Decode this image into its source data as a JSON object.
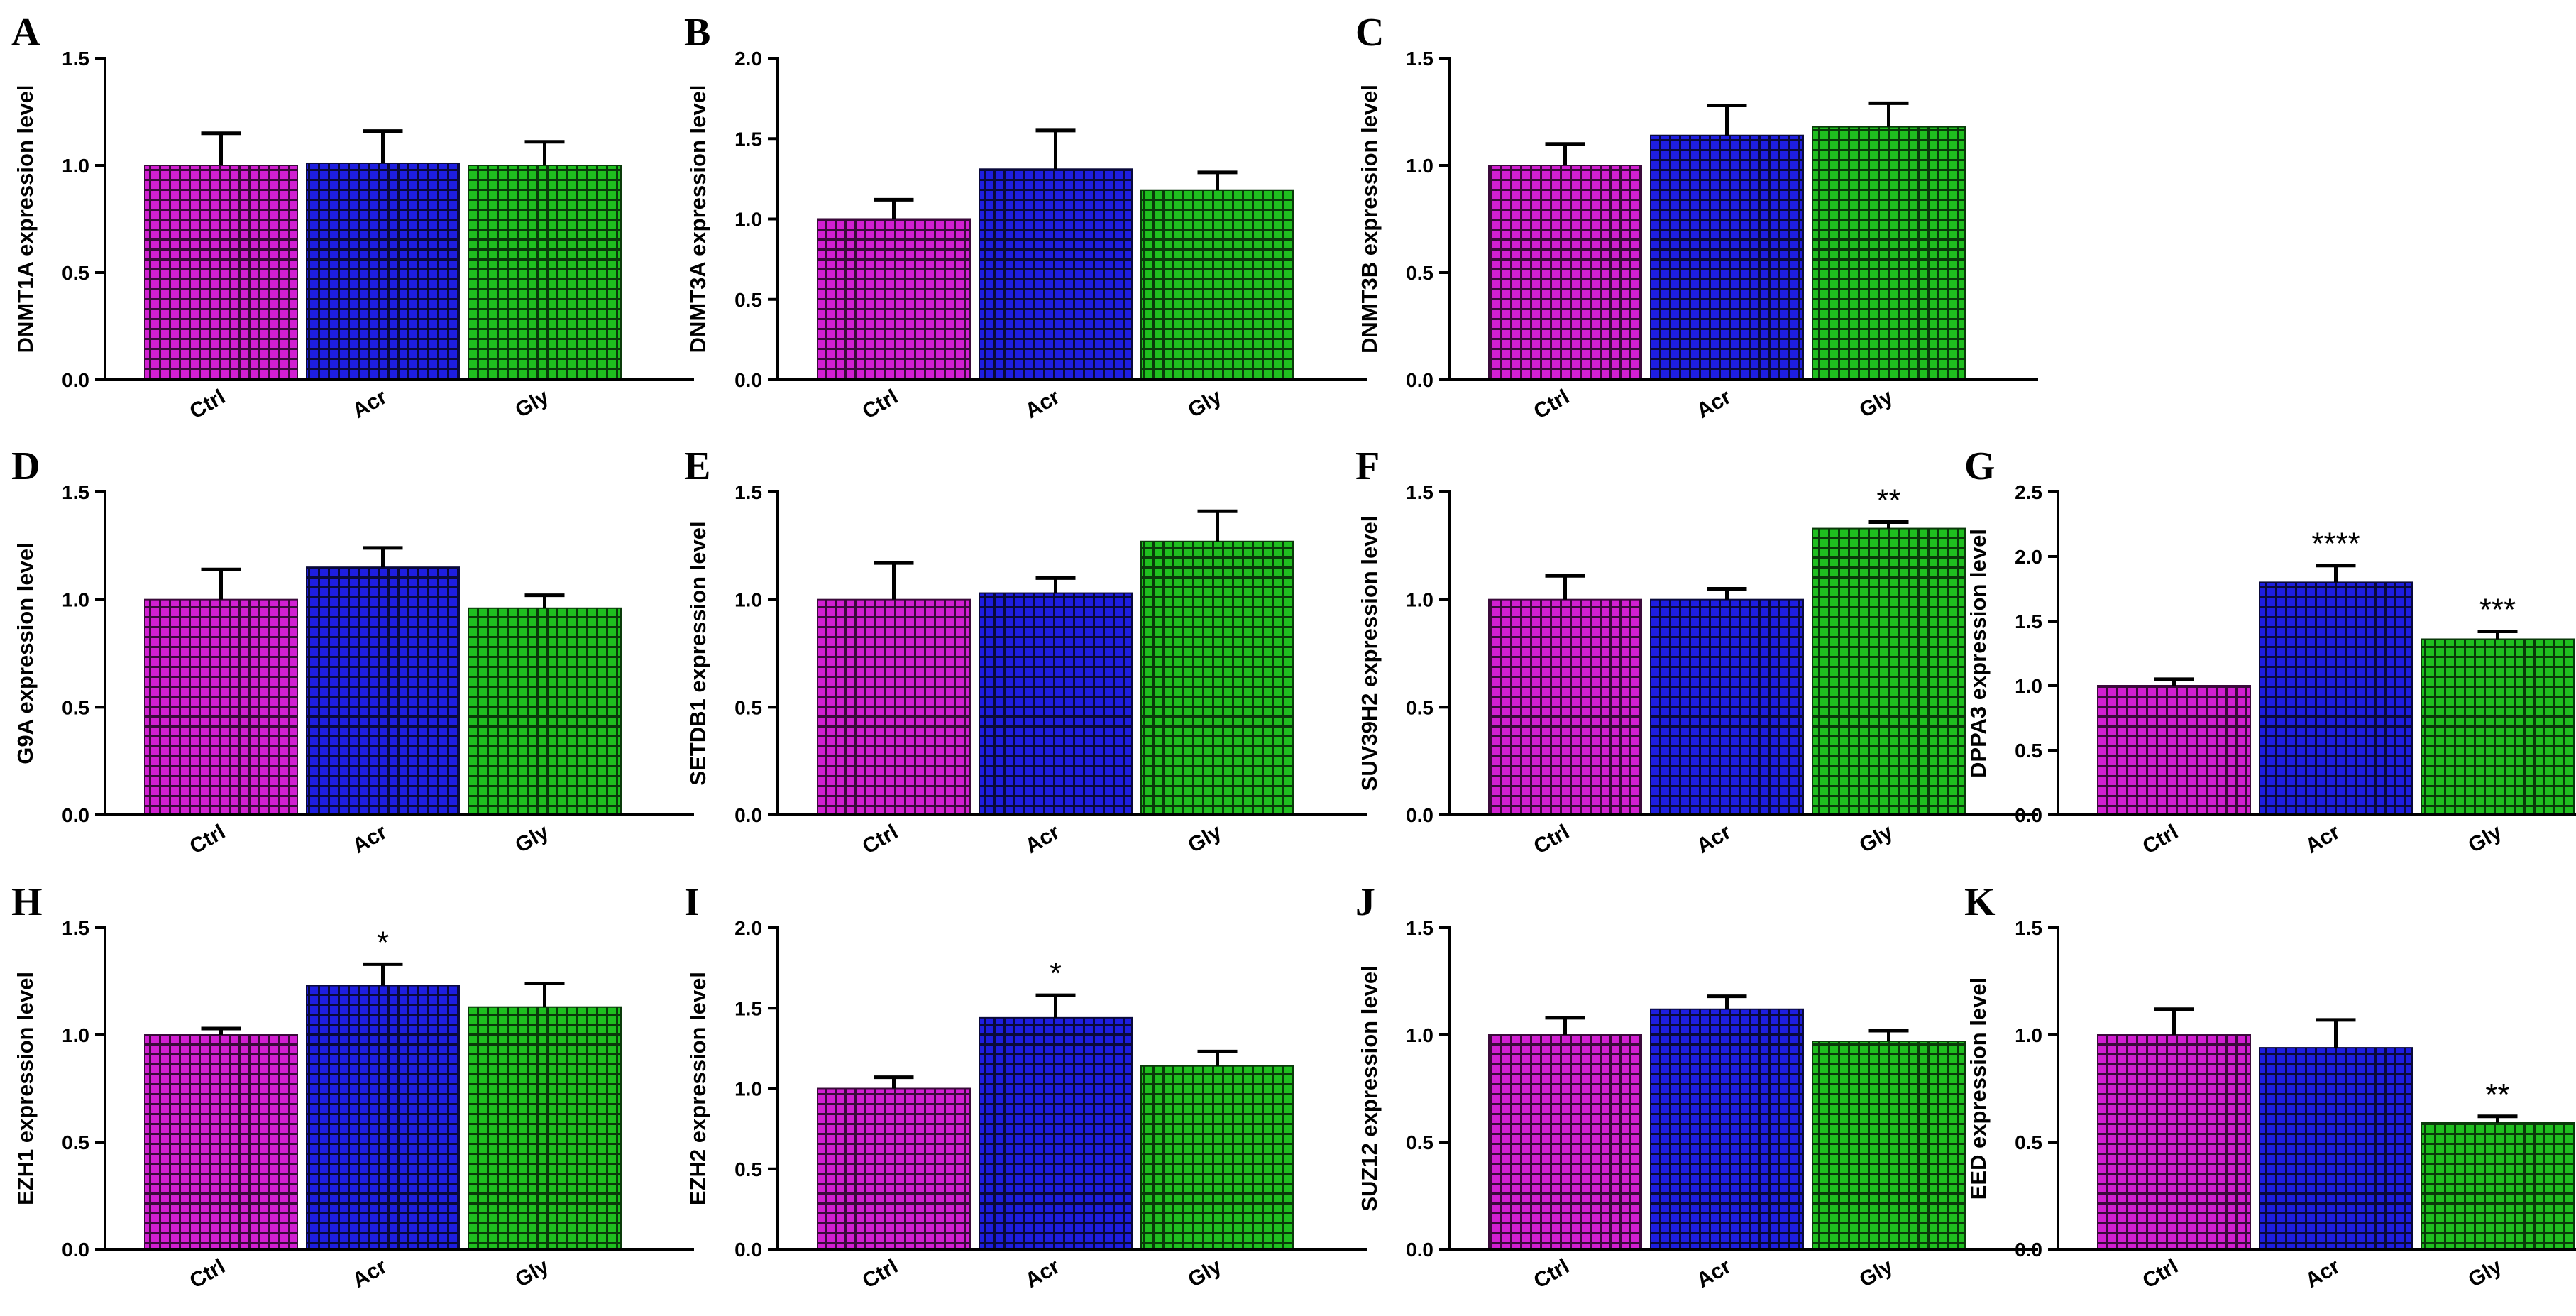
{
  "colors": {
    "Ctrl": {
      "fill": "#d11fd1",
      "grid": "#3a0a3a"
    },
    "Acr": {
      "fill": "#1e1ee0",
      "grid": "#0a0a3a"
    },
    "Gly": {
      "fill": "#1fbf1f",
      "grid": "#0a3a0a"
    }
  },
  "chart_data": [
    {
      "panel": "A",
      "type": "bar",
      "ylabel": "DNMT1A expression level",
      "categories": [
        "Ctrl",
        "Acr",
        "Gly"
      ],
      "values": [
        1.0,
        1.01,
        1.0
      ],
      "errors": [
        0.15,
        0.15,
        0.11
      ],
      "ylim": [
        0,
        1.5
      ],
      "yticks": [
        0.0,
        0.5,
        1.0,
        1.5
      ],
      "yticklabels": [
        "0.0",
        "0.5",
        "1.0",
        "1.5"
      ],
      "significance": [
        "",
        "",
        ""
      ]
    },
    {
      "panel": "B",
      "type": "bar",
      "ylabel": "DNMT3A expression level",
      "categories": [
        "Ctrl",
        "Acr",
        "Gly"
      ],
      "values": [
        1.0,
        1.31,
        1.18
      ],
      "errors": [
        0.12,
        0.24,
        0.11
      ],
      "ylim": [
        0,
        2.0
      ],
      "yticks": [
        0.0,
        0.5,
        1.0,
        1.5,
        2.0
      ],
      "yticklabels": [
        "0.0",
        "0.5",
        "1.0",
        "1.5",
        "2.0"
      ],
      "significance": [
        "",
        "",
        ""
      ]
    },
    {
      "panel": "C",
      "type": "bar",
      "ylabel": "DNMT3B expression level",
      "categories": [
        "Ctrl",
        "Acr",
        "Gly"
      ],
      "values": [
        1.0,
        1.14,
        1.18
      ],
      "errors": [
        0.1,
        0.14,
        0.11
      ],
      "ylim": [
        0,
        1.5
      ],
      "yticks": [
        0.0,
        0.5,
        1.0,
        1.5
      ],
      "yticklabels": [
        "0.0",
        "0.5",
        "1.0",
        "1.5"
      ],
      "significance": [
        "",
        "",
        ""
      ]
    },
    {
      "panel": "D",
      "type": "bar",
      "ylabel": "G9A expression level",
      "categories": [
        "Ctrl",
        "Acr",
        "Gly"
      ],
      "values": [
        1.0,
        1.15,
        0.96
      ],
      "errors": [
        0.14,
        0.09,
        0.06
      ],
      "ylim": [
        0,
        1.5
      ],
      "yticks": [
        0.0,
        0.5,
        1.0,
        1.5
      ],
      "yticklabels": [
        "0.0",
        "0.5",
        "1.0",
        "1.5"
      ],
      "significance": [
        "",
        "",
        ""
      ]
    },
    {
      "panel": "E",
      "type": "bar",
      "ylabel": "SETDB1 expression level",
      "categories": [
        "Ctrl",
        "Acr",
        "Gly"
      ],
      "values": [
        1.0,
        1.03,
        1.27
      ],
      "errors": [
        0.17,
        0.07,
        0.14
      ],
      "ylim": [
        0,
        1.5
      ],
      "yticks": [
        0.0,
        0.5,
        1.0,
        1.5
      ],
      "yticklabels": [
        "0.0",
        "0.5",
        "1.0",
        "1.5"
      ],
      "significance": [
        "",
        "",
        ""
      ]
    },
    {
      "panel": "F",
      "type": "bar",
      "ylabel": "SUV39H2 expression level",
      "categories": [
        "Ctrl",
        "Acr",
        "Gly"
      ],
      "values": [
        1.0,
        1.0,
        1.33
      ],
      "errors": [
        0.11,
        0.05,
        0.03
      ],
      "ylim": [
        0,
        1.5
      ],
      "yticks": [
        0.0,
        0.5,
        1.0,
        1.5
      ],
      "yticklabels": [
        "0.0",
        "0.5",
        "1.0",
        "1.5"
      ],
      "significance": [
        "",
        "",
        "**"
      ]
    },
    {
      "panel": "G",
      "type": "bar",
      "ylabel": "DPPA3 expression level",
      "categories": [
        "Ctrl",
        "Acr",
        "Gly"
      ],
      "values": [
        1.0,
        1.8,
        1.36
      ],
      "errors": [
        0.05,
        0.13,
        0.06
      ],
      "ylim": [
        0,
        2.5
      ],
      "yticks": [
        0.0,
        0.5,
        1.0,
        1.5,
        2.0,
        2.5
      ],
      "yticklabels": [
        "0.0",
        "0.5",
        "1.0",
        "1.5",
        "2.0",
        "2.5"
      ],
      "significance": [
        "",
        "****",
        "***"
      ]
    },
    {
      "panel": "H",
      "type": "bar",
      "ylabel": "EZH1 expression level",
      "categories": [
        "Ctrl",
        "Acr",
        "Gly"
      ],
      "values": [
        1.0,
        1.23,
        1.13
      ],
      "errors": [
        0.03,
        0.1,
        0.11
      ],
      "ylim": [
        0,
        1.5
      ],
      "yticks": [
        0.0,
        0.5,
        1.0,
        1.5
      ],
      "yticklabels": [
        "0.0",
        "0.5",
        "1.0",
        "1.5"
      ],
      "significance": [
        "",
        "*",
        ""
      ]
    },
    {
      "panel": "I",
      "type": "bar",
      "ylabel": "EZH2 expression level",
      "categories": [
        "Ctrl",
        "Acr",
        "Gly"
      ],
      "values": [
        1.0,
        1.44,
        1.14
      ],
      "errors": [
        0.07,
        0.14,
        0.09
      ],
      "ylim": [
        0,
        2.0
      ],
      "yticks": [
        0.0,
        0.5,
        1.0,
        1.5,
        2.0
      ],
      "yticklabels": [
        "0.0",
        "0.5",
        "1.0",
        "1.5",
        "2.0"
      ],
      "significance": [
        "",
        "*",
        ""
      ]
    },
    {
      "panel": "J",
      "type": "bar",
      "ylabel": "SUZ12 expression level",
      "categories": [
        "Ctrl",
        "Acr",
        "Gly"
      ],
      "values": [
        1.0,
        1.12,
        0.97
      ],
      "errors": [
        0.08,
        0.06,
        0.05
      ],
      "ylim": [
        0,
        1.5
      ],
      "yticks": [
        0.0,
        0.5,
        1.0,
        1.5
      ],
      "yticklabels": [
        "0.0",
        "0.5",
        "1.0",
        "1.5"
      ],
      "significance": [
        "",
        "",
        ""
      ]
    },
    {
      "panel": "K",
      "type": "bar",
      "ylabel": "EED expression level",
      "categories": [
        "Ctrl",
        "Acr",
        "Gly"
      ],
      "values": [
        1.0,
        0.94,
        0.59
      ],
      "errors": [
        0.12,
        0.13,
        0.03
      ],
      "ylim": [
        0,
        1.5
      ],
      "yticks": [
        0.0,
        0.5,
        1.0,
        1.5
      ],
      "yticklabels": [
        "0.0",
        "0.5",
        "1.0",
        "1.5"
      ],
      "significance": [
        "",
        "",
        "**"
      ]
    }
  ]
}
